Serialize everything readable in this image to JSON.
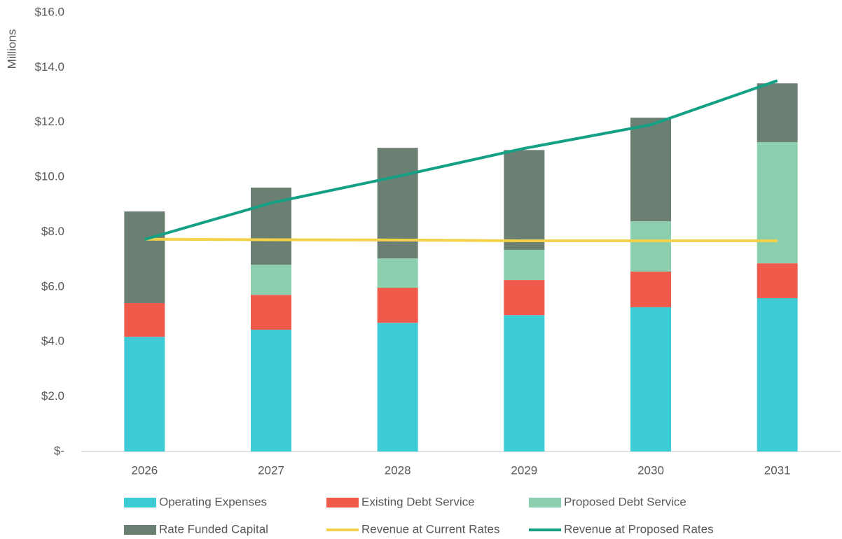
{
  "chart_data": {
    "type": "bar",
    "stacked": true,
    "y_label": "Millions",
    "categories": [
      "2026",
      "2027",
      "2028",
      "2029",
      "2030",
      "2031"
    ],
    "series": [
      {
        "name": "Operating Expenses",
        "type": "bar",
        "color": "#3ecbd6",
        "values": [
          4.18,
          4.44,
          4.69,
          4.97,
          5.26,
          5.59
        ]
      },
      {
        "name": "Existing Debt Service",
        "type": "bar",
        "color": "#f05a4a",
        "values": [
          1.23,
          1.27,
          1.28,
          1.28,
          1.3,
          1.27
        ]
      },
      {
        "name": "Proposed Debt Service",
        "type": "bar",
        "color": "#8ccfae",
        "values": [
          0,
          1.1,
          1.07,
          1.1,
          1.83,
          4.42
        ]
      },
      {
        "name": "Rate Funded Capital",
        "type": "bar",
        "color": "#6b7f72",
        "values": [
          3.34,
          2.81,
          4.03,
          3.64,
          3.78,
          2.14
        ]
      },
      {
        "name": "Revenue at Current Rates",
        "type": "line",
        "color": "#f2d24b",
        "values": [
          7.74,
          7.72,
          7.71,
          7.68,
          7.68,
          7.68
        ]
      },
      {
        "name": "Revenue at Proposed Rates",
        "type": "line",
        "color": "#13a085",
        "values": [
          7.73,
          9.06,
          10.03,
          11.05,
          11.91,
          13.52
        ]
      }
    ],
    "ylim": [
      0,
      16
    ],
    "yticks": [
      {
        "value": 0,
        "label": "$-"
      },
      {
        "value": 2,
        "label": "$2.0"
      },
      {
        "value": 4,
        "label": "$4.0"
      },
      {
        "value": 6,
        "label": "$6.0"
      },
      {
        "value": 8,
        "label": "$8.0"
      },
      {
        "value": 10,
        "label": "$10.0"
      },
      {
        "value": 12,
        "label": "$12.0"
      },
      {
        "value": 14,
        "label": "$14.0"
      },
      {
        "value": 16,
        "label": "$16.0"
      }
    ],
    "grid": false,
    "legend": "bottom"
  }
}
